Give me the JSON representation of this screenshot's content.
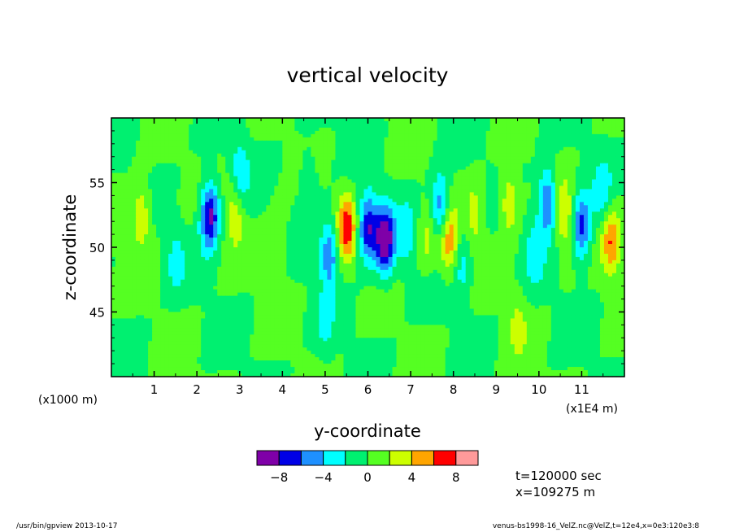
{
  "chart_data": {
    "type": "heatmap",
    "title": "vertical velocity",
    "xlabel": "y-coordinate",
    "ylabel": "z-coordinate",
    "x_unit_left": "(x1000 m)",
    "x_unit_right": "(x1E4 m)",
    "x_ticks": [
      "1",
      "2",
      "3",
      "4",
      "5",
      "6",
      "7",
      "8",
      "9",
      "10",
      "11"
    ],
    "y_ticks": [
      "45",
      "50",
      "55"
    ],
    "xlim": [
      0,
      12
    ],
    "ylim": [
      40,
      60
    ],
    "colorbar": {
      "colors": [
        "#7f00a8",
        "#0000e6",
        "#1e90ff",
        "#00ffff",
        "#00f070",
        "#55ff22",
        "#ccff00",
        "#ffa500",
        "#ff0000",
        "#ff9a9a"
      ],
      "tick_labels": [
        "-8",
        "-4",
        "0",
        "4",
        "8"
      ],
      "levels": [
        -10,
        -8,
        -6,
        -4,
        -2,
        0,
        2,
        4,
        6,
        8,
        10
      ]
    },
    "features": [
      {
        "y": 0.7,
        "z": 52.5,
        "w": 4
      },
      {
        "y": 1.5,
        "z": 49,
        "w": -2.5
      },
      {
        "y": 2.3,
        "z": 52.5,
        "w": -9
      },
      {
        "y": 2.9,
        "z": 53,
        "w": 4
      },
      {
        "y": 3.0,
        "z": 55.5,
        "w": -4
      },
      {
        "y": 3.9,
        "z": 50.5,
        "w": 2.5
      },
      {
        "y": 5.1,
        "z": 49.5,
        "w": -6
      },
      {
        "y": 5.5,
        "z": 51.5,
        "w": 7
      },
      {
        "y": 6.0,
        "z": 51.5,
        "w": -8
      },
      {
        "y": 6.4,
        "z": 50.5,
        "w": -10
      },
      {
        "y": 6.9,
        "z": 51,
        "w": -3
      },
      {
        "y": 7.4,
        "z": 50.5,
        "w": 2.5
      },
      {
        "y": 7.7,
        "z": 53,
        "w": -6
      },
      {
        "y": 7.9,
        "z": 50.5,
        "w": 6
      },
      {
        "y": 8.2,
        "z": 48.5,
        "w": -3
      },
      {
        "y": 8.5,
        "z": 52.5,
        "w": 3
      },
      {
        "y": 9.3,
        "z": 53.5,
        "w": 4
      },
      {
        "y": 9.9,
        "z": 49.5,
        "w": -3
      },
      {
        "y": 10.2,
        "z": 53.5,
        "w": -7
      },
      {
        "y": 10.6,
        "z": 52.5,
        "w": 4
      },
      {
        "y": 11.0,
        "z": 51.5,
        "w": -7
      },
      {
        "y": 11.7,
        "z": 50.5,
        "w": 6
      },
      {
        "y": 11.5,
        "z": 54,
        "w": -3
      },
      {
        "y": 4.6,
        "z": 55,
        "w": -2.2
      },
      {
        "y": 5.0,
        "z": 44,
        "w": -2.2
      },
      {
        "y": 9.5,
        "z": 44,
        "w": 2.2
      }
    ]
  },
  "info": {
    "time": "t=120000 sec",
    "position": "x=109275  m"
  },
  "footer": {
    "left": "/usr/bin/gpview  2013-10-17",
    "right": "venus-bs1998-16_VelZ.nc@VelZ,t=12e4,x=0e3:120e3:8"
  }
}
